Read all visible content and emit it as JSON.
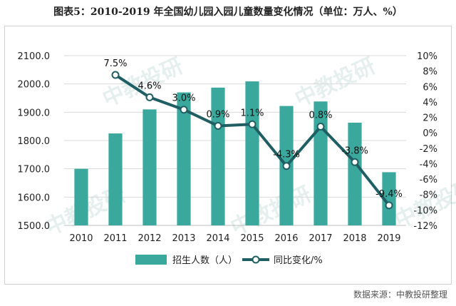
{
  "title": "图表5：2010-2019 年全国幼儿园入园儿童数量变化情况（单位：万人、%）",
  "source": "数据来源：中教投研整理",
  "watermark": "中教投研",
  "colors": {
    "bar": "#3aa89d",
    "line": "#1f5f63",
    "grid": "#d9d9d9",
    "marker_fill": "#ffffff"
  },
  "chart_data": {
    "type": "bar",
    "categories": [
      "2010",
      "2011",
      "2012",
      "2013",
      "2014",
      "2015",
      "2016",
      "2017",
      "2018",
      "2019"
    ],
    "series": [
      {
        "name": "招生人数（人）",
        "type": "bar",
        "axis": "left",
        "values": [
          1700.0,
          1825.0,
          1910.0,
          1970.0,
          1987.0,
          2009.0,
          1922.0,
          1938.0,
          1863.0,
          1688.0
        ]
      },
      {
        "name": "同比变化/%",
        "type": "line",
        "axis": "right",
        "values": [
          null,
          7.5,
          4.6,
          3.0,
          0.9,
          1.1,
          -4.3,
          0.8,
          -3.8,
          -9.4
        ],
        "labels": [
          "",
          "7.5%",
          "4.6%",
          "3.0%",
          "0.9%",
          "1.1%",
          "-4.3%",
          "0.8%",
          "-3.8%",
          "-9.4%"
        ]
      }
    ],
    "y_left": {
      "ylim": [
        1500,
        2100
      ],
      "ticks": [
        1500,
        1600,
        1700,
        1800,
        1900,
        2000,
        2100
      ],
      "tick_labels": [
        "1500.0",
        "1600.0",
        "1700.0",
        "1800.0",
        "1900.0",
        "2000.0",
        "2100.0"
      ]
    },
    "y_right": {
      "ylim": [
        -12,
        10
      ],
      "ticks": [
        -12,
        -10,
        -8,
        -6,
        -4,
        -2,
        0,
        2,
        4,
        6,
        8,
        10
      ],
      "tick_labels": [
        "-12%",
        "-10%",
        "-8%",
        "-6%",
        "-4%",
        "-2%",
        "0%",
        "2%",
        "4%",
        "6%",
        "8%",
        "10%"
      ]
    },
    "grid": true,
    "legend_position": "bottom"
  }
}
